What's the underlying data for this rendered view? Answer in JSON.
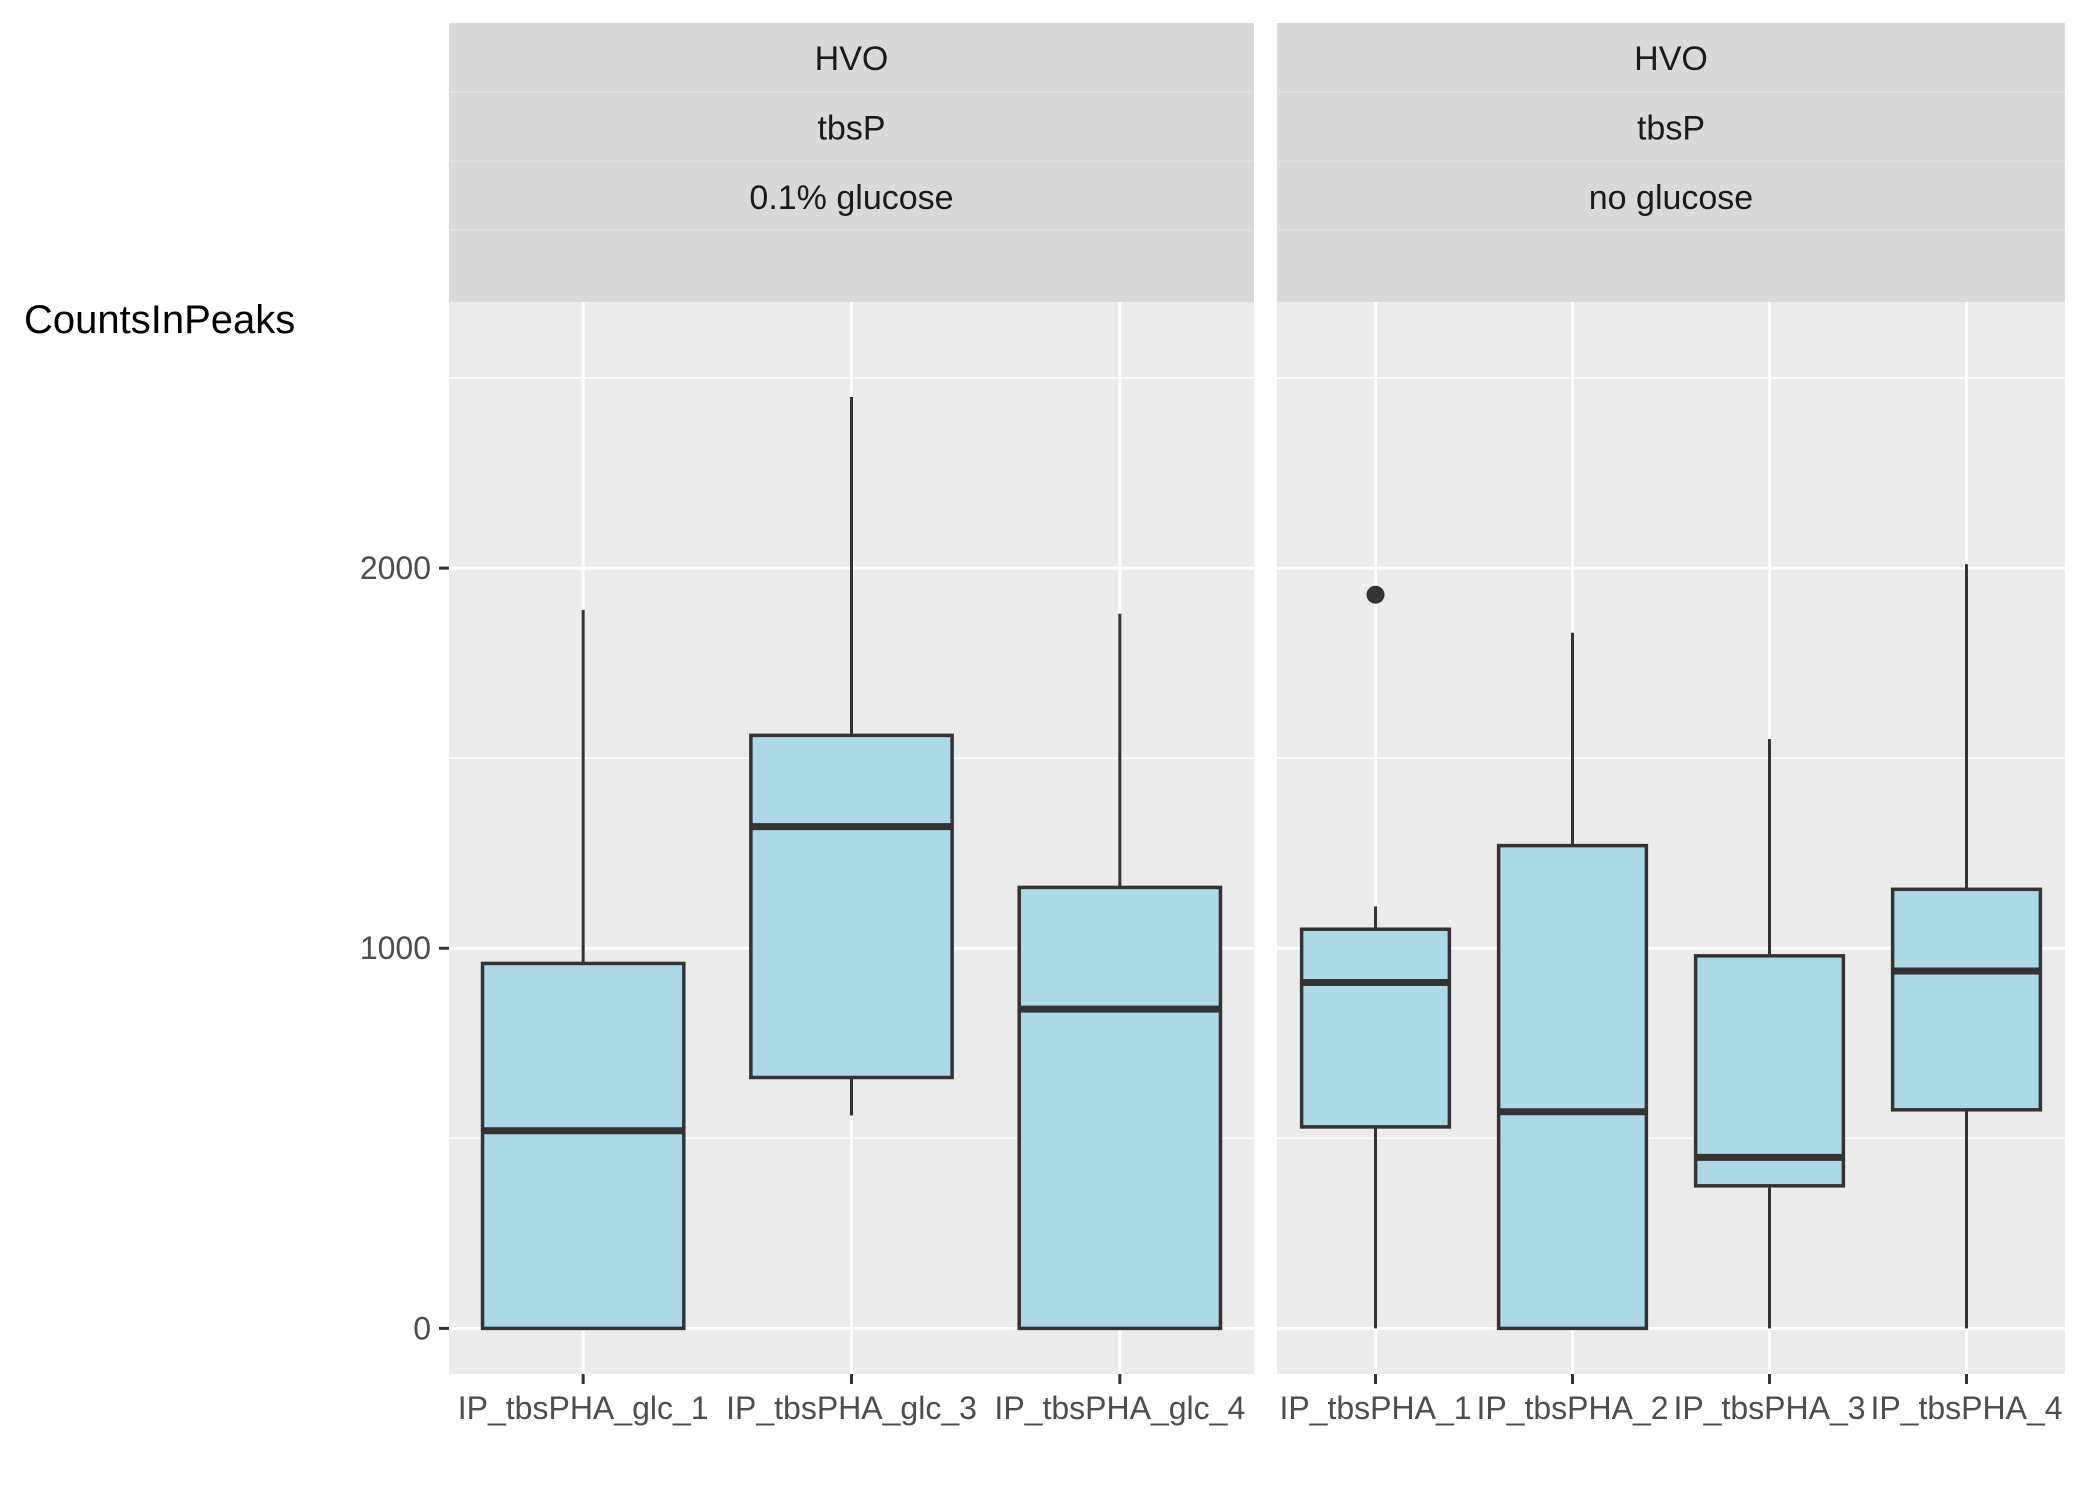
{
  "chart_data": {
    "type": "boxplot",
    "ylabel": "CountsInPeaks",
    "xlabel": "",
    "ylim": [
      -120,
      2700
    ],
    "y_ticks": [
      0,
      1000,
      2000
    ],
    "y_tick_labels": [
      "0",
      "1000",
      "2000"
    ],
    "grid": true,
    "box_fill": "#add8e6",
    "box_stroke": "#333333",
    "panel_bg": "#ebebeb",
    "strip_bg": "#d9d9d9",
    "facets": [
      {
        "strip": [
          "HVO",
          "tbsP",
          "0.1% glucose"
        ],
        "categories": [
          "IP_tbsPHA_glc_1",
          "IP_tbsPHA_glc_3",
          "IP_tbsPHA_glc_4"
        ],
        "tick_labels": [
          "IP_tbsPHA_glc_1",
          "IP_tbsPHA_glc_3",
          "IP_tbsPHA_glc_4"
        ],
        "boxes": [
          {
            "whisker_low": 0,
            "q1": 0,
            "median": 520,
            "q3": 960,
            "whisker_high": 1890,
            "outliers": []
          },
          {
            "whisker_low": 560,
            "q1": 660,
            "median": 1320,
            "q3": 1560,
            "whisker_high": 2450,
            "outliers": []
          },
          {
            "whisker_low": 0,
            "q1": 0,
            "median": 840,
            "q3": 1160,
            "whisker_high": 1880,
            "outliers": []
          }
        ]
      },
      {
        "strip": [
          "HVO",
          "tbsP",
          "no glucose"
        ],
        "categories": [
          "IP_tbsPHA_1",
          "IP_tbsPHA_2",
          "IP_tbsPHA_3",
          "IP_tbsPHA_4"
        ],
        "tick_labels": [
          "IP_tbsPHA_1",
          "IP_tbsPHA_2",
          "IP_tbsPHA_3",
          "IP_tbsPHA_4"
        ],
        "boxes": [
          {
            "whisker_low": 0,
            "q1": 530,
            "median": 910,
            "q3": 1050,
            "whisker_high": 1110,
            "outliers": [
              1930
            ]
          },
          {
            "whisker_low": 0,
            "q1": 0,
            "median": 570,
            "q3": 1270,
            "whisker_high": 1830,
            "outliers": []
          },
          {
            "whisker_low": 0,
            "q1": 375,
            "median": 450,
            "q3": 980,
            "whisker_high": 1550,
            "outliers": []
          },
          {
            "whisker_low": 0,
            "q1": 575,
            "median": 940,
            "q3": 1155,
            "whisker_high": 2010,
            "outliers": []
          }
        ]
      }
    ]
  }
}
